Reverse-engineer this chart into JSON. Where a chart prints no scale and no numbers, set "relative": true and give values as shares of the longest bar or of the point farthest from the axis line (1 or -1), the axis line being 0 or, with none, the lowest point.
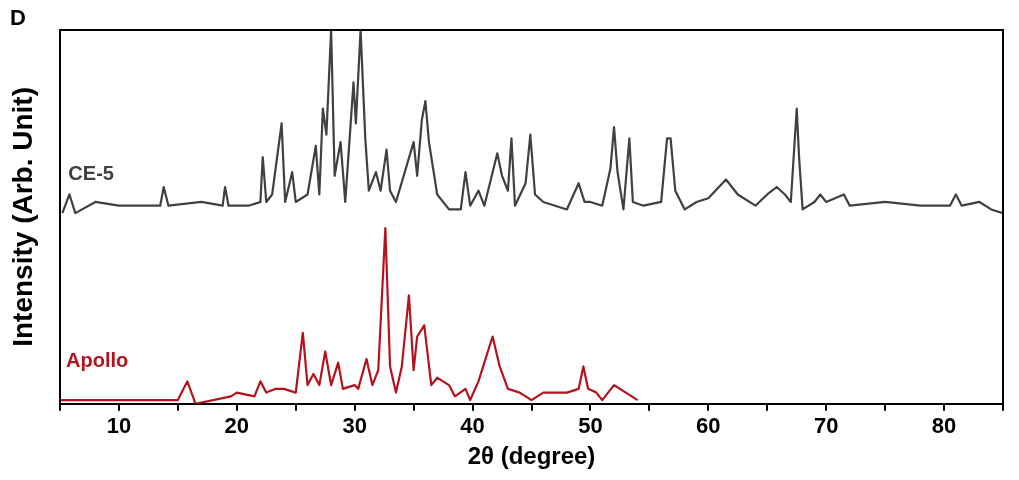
{
  "chart_data": {
    "type": "line",
    "title": "D",
    "xlabel": "2θ (degree)",
    "ylabel": "Intensity (Arb. Unit)",
    "relative": true,
    "legend": false,
    "grid": false,
    "marker": "none",
    "xlim": [
      5,
      85
    ],
    "xticks": [
      {
        "value": 5,
        "label": null
      },
      10,
      {
        "value": 15,
        "label": null
      },
      20,
      {
        "value": 25,
        "label": null
      },
      30,
      {
        "value": 35,
        "label": null
      },
      40,
      {
        "value": 45,
        "label": null
      },
      50,
      {
        "value": 55,
        "label": null
      },
      60,
      {
        "value": 65,
        "label": null
      },
      70,
      {
        "value": 75,
        "label": null
      },
      80,
      {
        "value": 85,
        "label": null
      }
    ],
    "series": [
      {
        "name": "CE-5",
        "color": "#404040",
        "x": [
          5.2,
          5.8,
          6.3,
          8,
          10,
          12,
          13.5,
          13.8,
          14.2,
          17,
          18.8,
          19,
          19.3,
          21,
          22,
          22.2,
          22.5,
          23,
          23.8,
          24.1,
          24.7,
          25,
          26,
          26.7,
          27,
          27.3,
          27.6,
          28,
          28.3,
          28.8,
          29.2,
          29.9,
          30.1,
          30.5,
          30.9,
          31.2,
          31.8,
          32.2,
          32.7,
          33,
          33.5,
          35,
          35.3,
          35.7,
          36,
          36.3,
          37,
          38,
          39,
          39.4,
          39.8,
          40.5,
          41,
          42.1,
          42.5,
          43,
          43.3,
          43.6,
          44.5,
          44.9,
          45.3,
          46,
          47,
          48,
          49,
          49.5,
          50,
          51,
          51.7,
          52,
          52.3,
          52.8,
          53.3,
          53.6,
          54.5,
          56,
          56.5,
          56.8,
          57.2,
          58,
          59,
          60,
          61.5,
          62.5,
          64,
          65,
          65.8,
          66.5,
          67,
          67.5,
          67.7,
          68,
          69,
          69.5,
          70,
          71.5,
          72,
          75,
          78,
          80.5,
          81,
          81.5,
          83,
          84,
          85
        ],
        "values": [
          0.51,
          0.56,
          0.51,
          0.54,
          0.53,
          0.53,
          0.53,
          0.58,
          0.53,
          0.54,
          0.53,
          0.58,
          0.53,
          0.53,
          0.54,
          0.66,
          0.54,
          0.56,
          0.75,
          0.54,
          0.62,
          0.54,
          0.56,
          0.69,
          0.56,
          0.79,
          0.72,
          1.0,
          0.61,
          0.7,
          0.54,
          0.86,
          0.75,
          1.0,
          0.71,
          0.57,
          0.62,
          0.57,
          0.68,
          0.57,
          0.54,
          0.7,
          0.61,
          0.76,
          0.81,
          0.7,
          0.56,
          0.52,
          0.52,
          0.62,
          0.53,
          0.57,
          0.53,
          0.67,
          0.61,
          0.57,
          0.71,
          0.53,
          0.59,
          0.72,
          0.56,
          0.54,
          0.53,
          0.52,
          0.59,
          0.54,
          0.54,
          0.53,
          0.63,
          0.74,
          0.62,
          0.52,
          0.71,
          0.54,
          0.53,
          0.54,
          0.71,
          0.71,
          0.57,
          0.52,
          0.54,
          0.55,
          0.6,
          0.56,
          0.53,
          0.56,
          0.58,
          0.56,
          0.54,
          0.79,
          0.66,
          0.52,
          0.54,
          0.56,
          0.54,
          0.56,
          0.53,
          0.54,
          0.53,
          0.53,
          0.56,
          0.53,
          0.54,
          0.52,
          0.51
        ]
      },
      {
        "name": "Apollo",
        "color": "#b5121b",
        "x": [
          5,
          15,
          15.8,
          16.5,
          19.5,
          20,
          21.5,
          22,
          22.5,
          23.3,
          24,
          25,
          25.6,
          26,
          26.5,
          27,
          27.5,
          28,
          28.6,
          29,
          30,
          30.3,
          31,
          31.5,
          32,
          32.6,
          33,
          33.5,
          34,
          34.6,
          35,
          35.3,
          35.9,
          36.5,
          37,
          38,
          38.5,
          39.4,
          39.8,
          40.5,
          41,
          41.7,
          42.3,
          43,
          44,
          45,
          46,
          47,
          48,
          49,
          49.4,
          49.8,
          50.5,
          51,
          52,
          52.5,
          53.5,
          54
        ],
        "values": [
          0.01,
          0.01,
          0.06,
          0.0,
          0.02,
          0.03,
          0.02,
          0.06,
          0.03,
          0.04,
          0.04,
          0.03,
          0.19,
          0.05,
          0.08,
          0.05,
          0.14,
          0.05,
          0.11,
          0.04,
          0.05,
          0.04,
          0.12,
          0.05,
          0.09,
          0.47,
          0.1,
          0.03,
          0.1,
          0.29,
          0.09,
          0.18,
          0.21,
          0.05,
          0.07,
          0.05,
          0.02,
          0.04,
          0.01,
          0.06,
          0.11,
          0.18,
          0.1,
          0.04,
          0.03,
          0.01,
          0.03,
          0.03,
          0.03,
          0.04,
          0.1,
          0.04,
          0.03,
          0.01,
          0.05,
          0.04,
          0.02,
          0.01
        ]
      }
    ]
  }
}
